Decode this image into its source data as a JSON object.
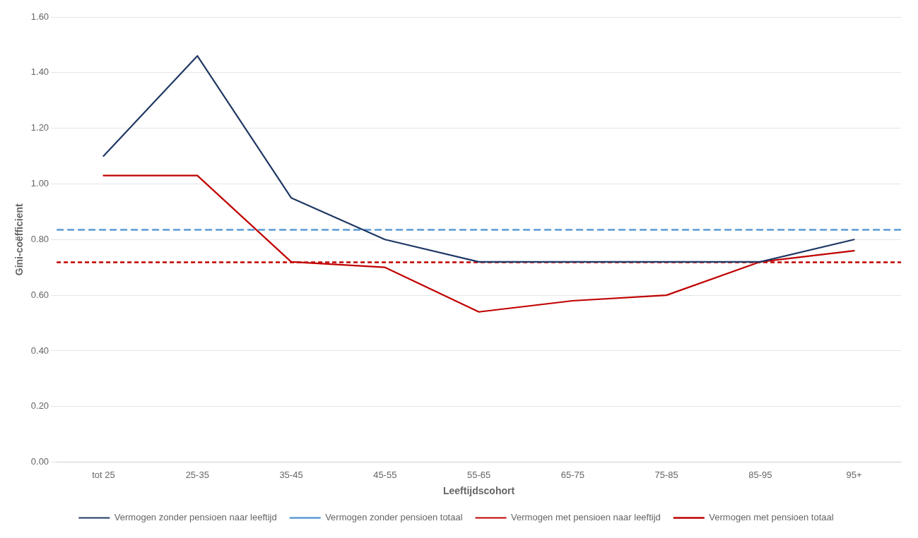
{
  "chart_data": {
    "type": "line",
    "categories": [
      "tot 25",
      "25-35",
      "35-45",
      "45-55",
      "55-65",
      "65-75",
      "75-85",
      "85-95",
      "95+"
    ],
    "series": [
      {
        "name": "Vermogen zonder pensioen naar leeftijd",
        "color": "#1F3864",
        "line_style": "solid",
        "values": [
          1.1,
          1.46,
          0.95,
          0.8,
          0.72,
          0.72,
          0.72,
          0.72,
          0.8
        ]
      },
      {
        "name": "Vermogen zonder pensioen totaal",
        "color": "#5B9BD5",
        "line_style": "dashed",
        "type": "hline",
        "value": 0.835
      },
      {
        "name": "Vermogen met pensioen naar leeftijd",
        "color": "#C00000",
        "line_style": "solid",
        "values": [
          1.03,
          1.03,
          0.72,
          0.7,
          0.54,
          0.58,
          0.6,
          0.72,
          0.76
        ]
      },
      {
        "name": "Vermogen met pensioen totaal",
        "color": "#C00000",
        "line_style": "dashed",
        "type": "hline",
        "value": 0.718
      }
    ],
    "xlabel": "Leeftijdscohort",
    "ylabel": "Gini-coëfficient",
    "ylim": [
      0.0,
      1.6
    ],
    "yticks": [
      {
        "value": 0.0,
        "label": "0.00"
      },
      {
        "value": 0.2,
        "label": "0.20"
      },
      {
        "value": 0.4,
        "label": "0.40"
      },
      {
        "value": 0.6,
        "label": "0.60"
      },
      {
        "value": 0.8,
        "label": "0.80"
      },
      {
        "value": 1.0,
        "label": "1.00"
      },
      {
        "value": 1.2,
        "label": "1.20"
      },
      {
        "value": 1.4,
        "label": "1.40"
      },
      {
        "value": 1.6,
        "label": "1.60"
      }
    ],
    "grid": true,
    "legend": "bottom"
  }
}
